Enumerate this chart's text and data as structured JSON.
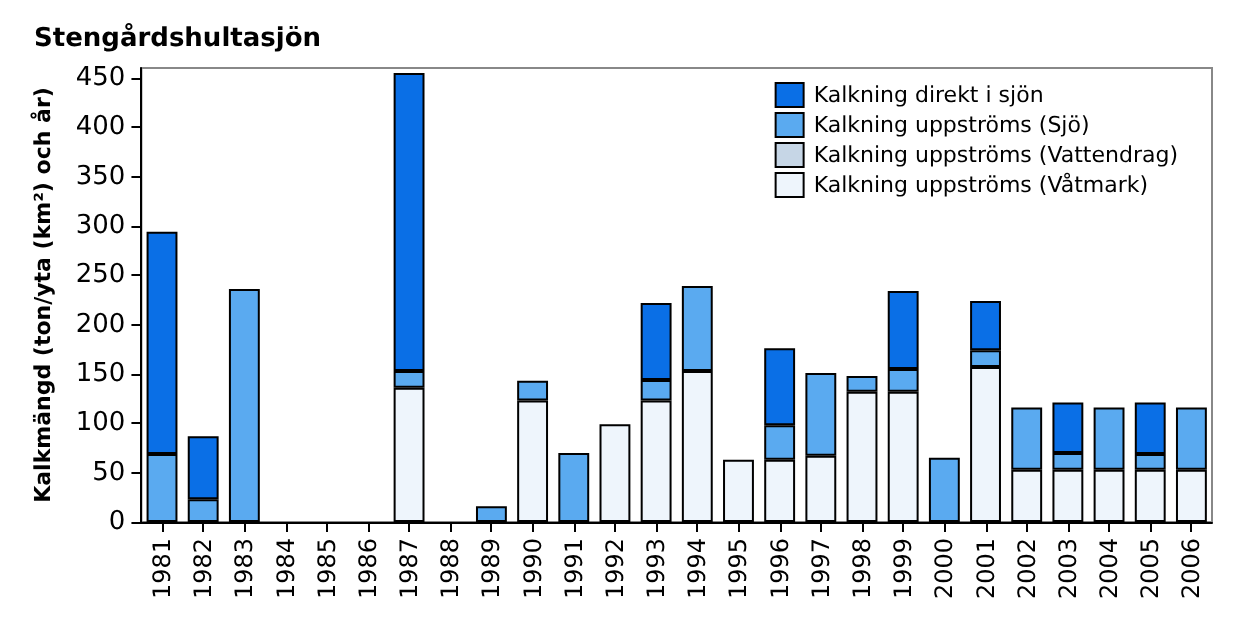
{
  "chart_data": {
    "type": "bar",
    "title": "Stengårdshultasjön",
    "ylabel": "Kalkmängd (ton/yta (km²) och år)",
    "categories": [
      "1981",
      "1982",
      "1983",
      "1984",
      "1985",
      "1986",
      "1987",
      "1988",
      "1989",
      "1990",
      "1991",
      "1992",
      "1993",
      "1994",
      "1995",
      "1996",
      "1997",
      "1998",
      "1999",
      "2000",
      "2001",
      "2002",
      "2003",
      "2004",
      "2005",
      "2006"
    ],
    "stacked": true,
    "series": [
      {
        "name": "Kalkning uppströms (Våtmark)",
        "color": "#eef5fc",
        "values": [
          null,
          null,
          null,
          null,
          null,
          null,
          136,
          null,
          null,
          123,
          null,
          99,
          123,
          153,
          63,
          63,
          67,
          132,
          132,
          null,
          157,
          53,
          53,
          53,
          53,
          53
        ]
      },
      {
        "name": "Kalkning uppströms (Vattendrag)",
        "color": "#c6d6e6",
        "values": [
          null,
          null,
          null,
          null,
          null,
          null,
          null,
          null,
          null,
          null,
          null,
          null,
          null,
          null,
          null,
          null,
          null,
          null,
          null,
          null,
          null,
          null,
          null,
          null,
          null,
          null
        ]
      },
      {
        "name": "Kalkning uppströms (Sjö)",
        "color": "#5aaaf0",
        "values": [
          69,
          23,
          236,
          null,
          null,
          null,
          17,
          null,
          16,
          20,
          70,
          null,
          21,
          86,
          null,
          35,
          84,
          16,
          23,
          65,
          17,
          63,
          17,
          63,
          16,
          63
        ]
      },
      {
        "name": "Kalkning direkt i sjön",
        "color": "#0a6fe6",
        "values": [
          225,
          64,
          null,
          null,
          null,
          null,
          302,
          null,
          null,
          null,
          null,
          null,
          78,
          null,
          null,
          78,
          null,
          null,
          79,
          null,
          50,
          null,
          51,
          null,
          52,
          null
        ]
      }
    ],
    "ylim": [
      0,
      460
    ],
    "yticks": [
      0,
      50,
      100,
      150,
      200,
      250,
      300,
      350,
      400,
      450
    ],
    "grid": false,
    "legend": "top right"
  }
}
